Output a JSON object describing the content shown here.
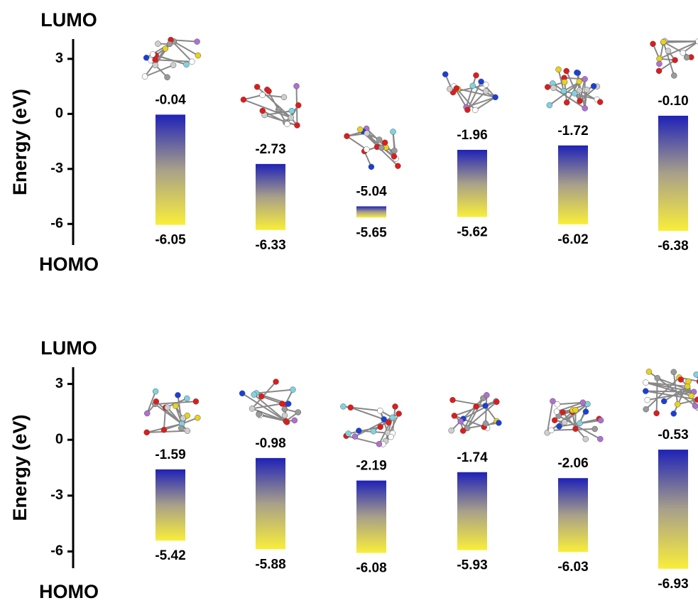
{
  "chart_data": [
    {
      "type": "floating-bar",
      "y_label": "Energy (eV)",
      "top_label": "LUMO",
      "bottom_label": "HOMO",
      "ylim": [
        -7.15,
        4.08
      ],
      "yticks": [
        3,
        0,
        -3,
        -6
      ],
      "lumo": {
        "values": [
          -0.04,
          -2.73,
          -5.04,
          -1.96,
          -1.72,
          -0.1
        ],
        "value_labels": [
          "-0.04",
          "-2.73",
          "-5.04",
          "-1.96",
          "-1.72",
          "-0.10"
        ]
      },
      "homo": {
        "values": [
          -6.05,
          -6.33,
          -5.65,
          -5.62,
          -6.02,
          -6.38
        ],
        "value_labels": [
          "-6.05",
          "-6.33",
          "-5.65",
          "-5.62",
          "-6.02",
          "-6.38"
        ]
      },
      "colors": [
        "#1f22b8",
        "#f9ee3a"
      ]
    },
    {
      "type": "floating-bar",
      "y_label": "Energy (eV)",
      "top_label": "LUMO",
      "bottom_label": "HOMO",
      "ylim": [
        -6.9,
        3.9
      ],
      "yticks": [
        3,
        0,
        -3,
        -6
      ],
      "lumo": {
        "values": [
          -1.59,
          -0.98,
          -2.19,
          -1.74,
          -2.06,
          -0.53
        ],
        "value_labels": [
          "-1.59",
          "-0.98",
          "-2.19",
          "-1.74",
          "-2.06",
          "-0.53"
        ]
      },
      "homo": {
        "values": [
          -5.42,
          -5.88,
          -6.08,
          -5.93,
          -6.03,
          -6.93
        ],
        "value_labels": [
          "-5.42",
          "-5.88",
          "-6.08",
          "-5.93",
          "-6.03",
          "-6.93"
        ]
      },
      "colors": [
        "#1f22b8",
        "#f9ee3a"
      ]
    }
  ]
}
